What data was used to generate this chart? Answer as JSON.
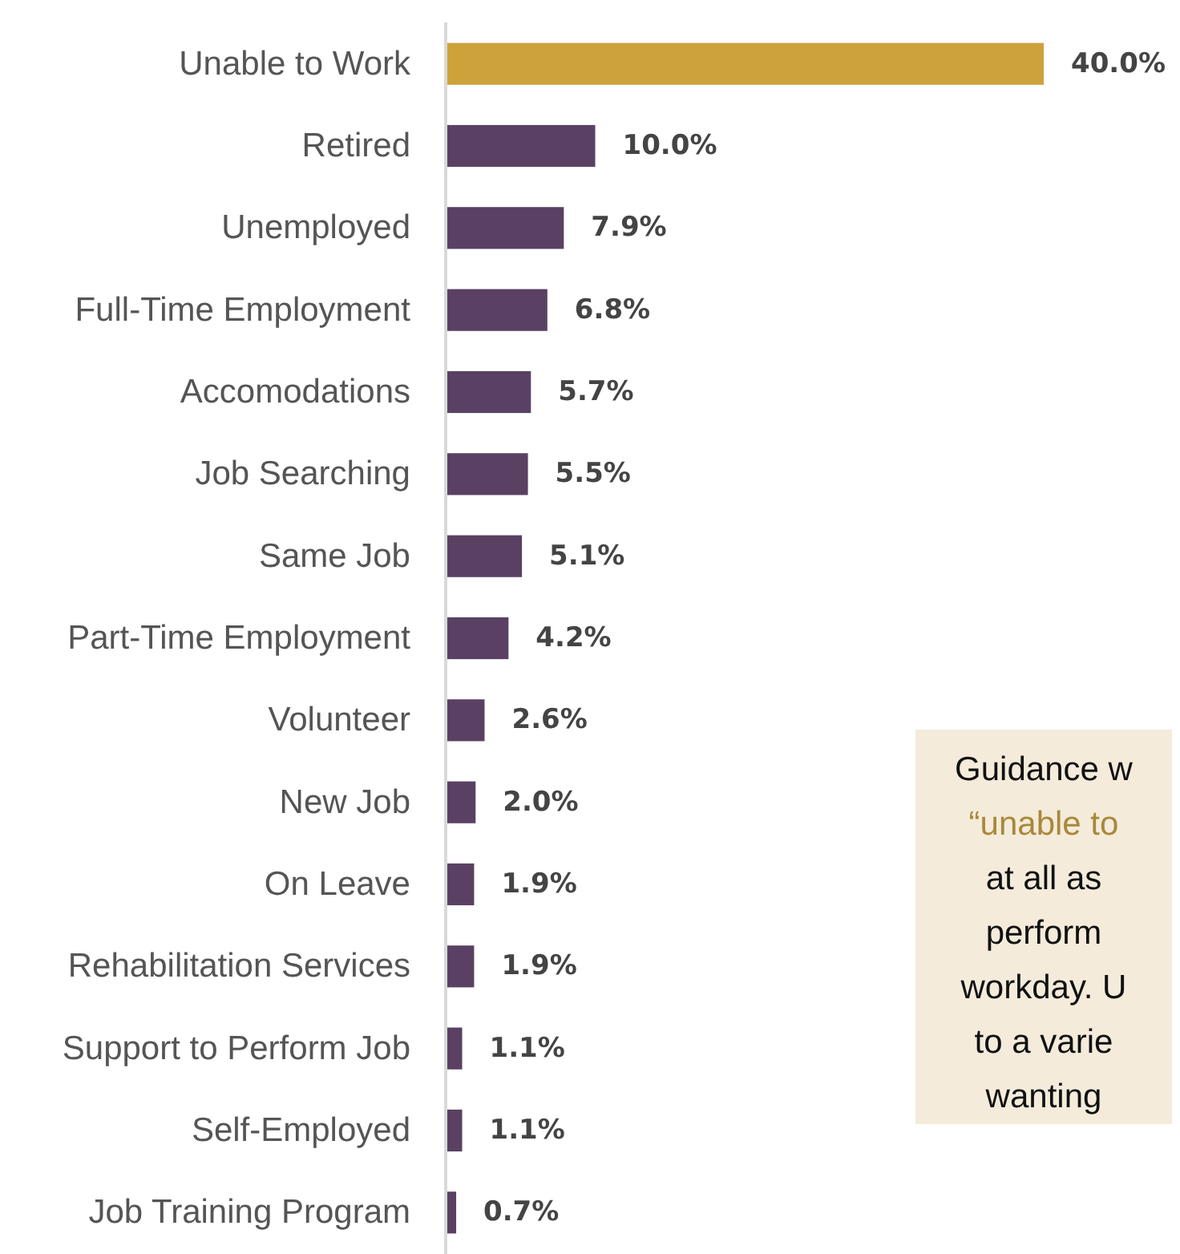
{
  "chart_data": {
    "type": "bar",
    "orientation": "horizontal",
    "categories": [
      "Unable to Work",
      "Retired",
      "Unemployed",
      "Full-Time Employment",
      "Accomodations",
      "Job Searching",
      "Same Job",
      "Part-Time Employment",
      "Volunteer",
      "New Job",
      "On Leave",
      "Rehabilitation Services",
      "Support to Perform Job",
      "Self-Employed",
      "Job Training Program"
    ],
    "values": [
      40.0,
      10.0,
      7.9,
      6.8,
      5.7,
      5.5,
      5.1,
      4.2,
      2.6,
      2.0,
      1.9,
      1.9,
      1.1,
      1.1,
      0.7
    ],
    "value_labels": [
      "40.0%",
      "10.0%",
      "7.9%",
      "6.8%",
      "5.7%",
      "5.5%",
      "5.1%",
      "4.2%",
      "2.6%",
      "2.0%",
      "1.9%",
      "1.9%",
      "1.1%",
      "1.1%",
      "0.7%"
    ],
    "colors": [
      "#cda23b",
      "#5a4163",
      "#5a4163",
      "#5a4163",
      "#5a4163",
      "#5a4163",
      "#5a4163",
      "#5a4163",
      "#5a4163",
      "#5a4163",
      "#5a4163",
      "#5a4163",
      "#5a4163",
      "#5a4163",
      "#5a4163"
    ],
    "annotations": [
      "Guidance w\n“unable to \nat all as\nperform\nworkday. U\nto a varie\nwanting"
    ]
  }
}
